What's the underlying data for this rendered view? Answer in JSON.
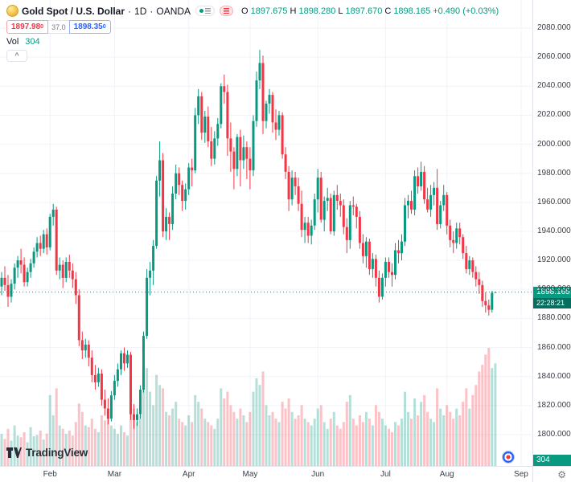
{
  "header": {
    "symbol_title": "Gold Spot / U.S. Dollar",
    "dot": "·",
    "timeframe": "1D",
    "exchange": "OANDA",
    "ohlc": {
      "o_label": "O",
      "o": "1897.675",
      "h_label": "H",
      "h": "1898.280",
      "l_label": "L",
      "l": "1897.670",
      "c_label": "C",
      "c": "1898.165",
      "change": "+0.490 (+0.03%)"
    },
    "trade": {
      "sell": "1897.98",
      "sell_sup": "0",
      "spread": "37.0",
      "buy": "1898.35",
      "buy_sup": "0"
    },
    "vol_label": "Vol",
    "vol_value": "304",
    "collapse_label": "^"
  },
  "price_axis": {
    "ticks": [
      2080,
      2060,
      2040,
      2020,
      2000,
      1980,
      1960,
      1940,
      1920,
      1900,
      1880,
      1860,
      1840,
      1820,
      1800
    ],
    "decimals": 3,
    "current_price_label": "1898.165",
    "countdown": "22:28:21",
    "volume_badge": "304"
  },
  "time_axis": {
    "months": [
      {
        "label": "Feb",
        "index": 15
      },
      {
        "label": "Mar",
        "index": 35
      },
      {
        "label": "Apr",
        "index": 58
      },
      {
        "label": "May",
        "index": 77
      },
      {
        "label": "Jun",
        "index": 98
      },
      {
        "label": "Jul",
        "index": 119
      },
      {
        "label": "Aug",
        "index": 138
      },
      {
        "label": "Sep",
        "index": 161
      }
    ]
  },
  "footer": {
    "logo_text": "TradingView",
    "gear_icon": "⚙"
  },
  "chart_data": {
    "type": "candlestick+volume",
    "title": "Gold Spot / U.S. Dollar, 1D, OANDA",
    "y_axis_range": [
      1800,
      2080
    ],
    "y_top_price": 2080,
    "y_bottom_price": 1800,
    "current_price": 1898.165,
    "total_slots": 165,
    "colors": {
      "up": "#089981",
      "down": "#f23645",
      "vol_up": "rgba(8,153,129,0.30)",
      "vol_down": "rgba(242,54,69,0.30)",
      "grid": "#f0f3fa",
      "current_line": "#089981",
      "price_label_bg": "#089981",
      "countdown_bg": "#056e5f"
    },
    "candles": [
      [
        1902,
        1912,
        1896,
        1908
      ],
      [
        1908,
        1916,
        1899,
        1903
      ],
      [
        1903,
        1910,
        1888,
        1895
      ],
      [
        1895,
        1907,
        1891,
        1904
      ],
      [
        1904,
        1918,
        1900,
        1915
      ],
      [
        1915,
        1923,
        1908,
        1920
      ],
      [
        1920,
        1928,
        1911,
        1917
      ],
      [
        1917,
        1922,
        1902,
        1905
      ],
      [
        1905,
        1915,
        1902,
        1912
      ],
      [
        1912,
        1921,
        1908,
        1918
      ],
      [
        1918,
        1929,
        1915,
        1926
      ],
      [
        1926,
        1936,
        1922,
        1932
      ],
      [
        1932,
        1937,
        1923,
        1928
      ],
      [
        1928,
        1941,
        1925,
        1938
      ],
      [
        1938,
        1942,
        1924,
        1929
      ],
      [
        1929,
        1952,
        1927,
        1950
      ],
      [
        1950,
        1959,
        1944,
        1955
      ],
      [
        1955,
        1957,
        1910,
        1913
      ],
      [
        1913,
        1922,
        1907,
        1917
      ],
      [
        1917,
        1920,
        1901,
        1908
      ],
      [
        1908,
        1922,
        1905,
        1919
      ],
      [
        1919,
        1924,
        1908,
        1913
      ],
      [
        1913,
        1918,
        1901,
        1907
      ],
      [
        1907,
        1912,
        1890,
        1896
      ],
      [
        1896,
        1900,
        1861,
        1865
      ],
      [
        1865,
        1871,
        1852,
        1858
      ],
      [
        1858,
        1866,
        1853,
        1862
      ],
      [
        1862,
        1865,
        1847,
        1853
      ],
      [
        1853,
        1858,
        1836,
        1841
      ],
      [
        1841,
        1848,
        1831,
        1836
      ],
      [
        1836,
        1846,
        1833,
        1842
      ],
      [
        1842,
        1845,
        1820,
        1824
      ],
      [
        1824,
        1831,
        1813,
        1818
      ],
      [
        1818,
        1825,
        1807,
        1811
      ],
      [
        1811,
        1830,
        1809,
        1827
      ],
      [
        1827,
        1841,
        1824,
        1837
      ],
      [
        1837,
        1849,
        1833,
        1845
      ],
      [
        1845,
        1858,
        1841,
        1856
      ],
      [
        1856,
        1860,
        1844,
        1849
      ],
      [
        1849,
        1858,
        1846,
        1855
      ],
      [
        1855,
        1857,
        1810,
        1814
      ],
      [
        1814,
        1821,
        1804,
        1810
      ],
      [
        1810,
        1818,
        1806,
        1814
      ],
      [
        1814,
        1834,
        1811,
        1831
      ],
      [
        1831,
        1871,
        1829,
        1868
      ],
      [
        1868,
        1914,
        1866,
        1908
      ],
      [
        1908,
        1919,
        1896,
        1913
      ],
      [
        1913,
        1934,
        1903,
        1930
      ],
      [
        1930,
        1978,
        1928,
        1975
      ],
      [
        1975,
        2002,
        1964,
        1989
      ],
      [
        1989,
        1994,
        1936,
        1940
      ],
      [
        1940,
        1956,
        1934,
        1950
      ],
      [
        1950,
        1953,
        1934,
        1945
      ],
      [
        1945,
        1971,
        1941,
        1966
      ],
      [
        1966,
        1986,
        1962,
        1980
      ],
      [
        1980,
        1984,
        1965,
        1972
      ],
      [
        1972,
        1975,
        1954,
        1961
      ],
      [
        1961,
        1973,
        1955,
        1969
      ],
      [
        1969,
        1987,
        1965,
        1984
      ],
      [
        1984,
        1990,
        1971,
        1982
      ],
      [
        1982,
        2025,
        1980,
        2020
      ],
      [
        2020,
        2038,
        2014,
        2033
      ],
      [
        2033,
        2036,
        2003,
        2008
      ],
      [
        2008,
        2023,
        2001,
        2019
      ],
      [
        2019,
        2026,
        1998,
        2002
      ],
      [
        2002,
        2012,
        1985,
        1990
      ],
      [
        1990,
        2009,
        1986,
        2004
      ],
      [
        2004,
        2018,
        1999,
        2014
      ],
      [
        2014,
        2042,
        2011,
        2040
      ],
      [
        2040,
        2048,
        2028,
        2036
      ],
      [
        2036,
        2041,
        1992,
        2004
      ],
      [
        2004,
        2015,
        1981,
        1995
      ],
      [
        1995,
        1998,
        1969,
        1983
      ],
      [
        1983,
        2007,
        1978,
        2005
      ],
      [
        2005,
        2010,
        1971,
        1989
      ],
      [
        1989,
        2006,
        1983,
        1998
      ],
      [
        1998,
        2002,
        1976,
        1990
      ],
      [
        1990,
        1998,
        1969,
        1982
      ],
      [
        1982,
        2020,
        1978,
        2016
      ],
      [
        2016,
        2050,
        2012,
        2044
      ],
      [
        2044,
        2065,
        2038,
        2056
      ],
      [
        2056,
        2061,
        2007,
        2016
      ],
      [
        2016,
        2030,
        2011,
        2028
      ],
      [
        2028,
        2038,
        2021,
        2034
      ],
      [
        2034,
        2036,
        2008,
        2015
      ],
      [
        2015,
        2024,
        2003,
        2010
      ],
      [
        2010,
        2023,
        2006,
        2020
      ],
      [
        2020,
        2022,
        1990,
        1993
      ],
      [
        1993,
        1998,
        1976,
        1981
      ],
      [
        1981,
        1985,
        1954,
        1962
      ],
      [
        1962,
        1982,
        1958,
        1977
      ],
      [
        1977,
        1981,
        1965,
        1971
      ],
      [
        1971,
        1977,
        1954,
        1959
      ],
      [
        1959,
        1968,
        1936,
        1941
      ],
      [
        1941,
        1950,
        1932,
        1946
      ],
      [
        1946,
        1950,
        1932,
        1937
      ],
      [
        1937,
        1948,
        1931,
        1944
      ],
      [
        1944,
        1966,
        1941,
        1962
      ],
      [
        1962,
        1983,
        1953,
        1977
      ],
      [
        1977,
        1981,
        1946,
        1948
      ],
      [
        1948,
        1964,
        1940,
        1961
      ],
      [
        1961,
        1970,
        1954,
        1963
      ],
      [
        1963,
        1966,
        1938,
        1940
      ],
      [
        1940,
        1968,
        1937,
        1965
      ],
      [
        1965,
        1972,
        1955,
        1961
      ],
      [
        1961,
        1966,
        1950,
        1958
      ],
      [
        1958,
        1962,
        1938,
        1943
      ],
      [
        1943,
        1949,
        1925,
        1934
      ],
      [
        1934,
        1961,
        1928,
        1958
      ],
      [
        1958,
        1964,
        1951,
        1957
      ],
      [
        1957,
        1959,
        1942,
        1950
      ],
      [
        1950,
        1954,
        1928,
        1932
      ],
      [
        1932,
        1938,
        1918,
        1923
      ],
      [
        1923,
        1936,
        1915,
        1933
      ],
      [
        1933,
        1935,
        1910,
        1914
      ],
      [
        1914,
        1925,
        1908,
        1921
      ],
      [
        1921,
        1924,
        1902,
        1908
      ],
      [
        1908,
        1913,
        1891,
        1895
      ],
      [
        1895,
        1911,
        1893,
        1908
      ],
      [
        1908,
        1922,
        1902,
        1919
      ],
      [
        1919,
        1922,
        1908,
        1912
      ],
      [
        1912,
        1918,
        1902,
        1910
      ],
      [
        1910,
        1932,
        1907,
        1927
      ],
      [
        1927,
        1934,
        1918,
        1925
      ],
      [
        1925,
        1938,
        1920,
        1933
      ],
      [
        1933,
        1963,
        1930,
        1958
      ],
      [
        1958,
        1965,
        1949,
        1961
      ],
      [
        1961,
        1968,
        1952,
        1955
      ],
      [
        1955,
        1982,
        1951,
        1978
      ],
      [
        1978,
        1984,
        1966,
        1971
      ],
      [
        1971,
        1988,
        1968,
        1981
      ],
      [
        1981,
        1985,
        1959,
        1962
      ],
      [
        1962,
        1970,
        1953,
        1955
      ],
      [
        1955,
        1972,
        1950,
        1965
      ],
      [
        1965,
        1974,
        1958,
        1970
      ],
      [
        1970,
        1983,
        1941,
        1945
      ],
      [
        1945,
        1961,
        1942,
        1958
      ],
      [
        1958,
        1972,
        1954,
        1965
      ],
      [
        1965,
        1967,
        1938,
        1944
      ],
      [
        1944,
        1948,
        1929,
        1934
      ],
      [
        1934,
        1940,
        1925,
        1932
      ],
      [
        1932,
        1946,
        1928,
        1942
      ],
      [
        1942,
        1946,
        1931,
        1936
      ],
      [
        1936,
        1938,
        1921,
        1925
      ],
      [
        1925,
        1930,
        1911,
        1914
      ],
      [
        1914,
        1923,
        1910,
        1920
      ],
      [
        1920,
        1922,
        1908,
        1912
      ],
      [
        1912,
        1916,
        1902,
        1907
      ],
      [
        1907,
        1912,
        1897,
        1903
      ],
      [
        1903,
        1906,
        1888,
        1892
      ],
      [
        1892,
        1898,
        1884,
        1889
      ],
      [
        1889,
        1893,
        1882,
        1886
      ],
      [
        1886,
        1899,
        1884,
        1897.675
      ],
      [
        1897.675,
        1898.28,
        1897.67,
        1898.165
      ]
    ],
    "volumes": [
      95,
      80,
      110,
      75,
      120,
      90,
      85,
      100,
      70,
      115,
      88,
      92,
      105,
      78,
      96,
      210,
      150,
      230,
      120,
      110,
      95,
      105,
      90,
      130,
      185,
      160,
      120,
      115,
      140,
      110,
      100,
      150,
      135,
      160,
      120,
      110,
      95,
      120,
      100,
      90,
      200,
      170,
      130,
      150,
      260,
      290,
      220,
      180,
      270,
      240,
      230,
      160,
      150,
      170,
      190,
      140,
      130,
      120,
      150,
      130,
      210,
      190,
      170,
      140,
      130,
      120,
      110,
      140,
      230,
      200,
      220,
      180,
      160,
      140,
      170,
      150,
      130,
      160,
      220,
      260,
      240,
      280,
      180,
      150,
      160,
      140,
      130,
      190,
      170,
      200,
      160,
      140,
      150,
      180,
      140,
      130,
      120,
      140,
      170,
      180,
      130,
      110,
      140,
      160,
      120,
      110,
      130,
      190,
      210,
      140,
      120,
      150,
      130,
      160,
      140,
      120,
      180,
      160,
      140,
      120,
      110,
      100,
      130,
      120,
      140,
      220,
      160,
      140,
      200,
      150,
      190,
      210,
      160,
      140,
      130,
      230,
      170,
      150,
      180,
      160,
      140,
      170,
      150,
      190,
      230,
      170,
      210,
      240,
      280,
      300,
      330,
      350,
      290,
      304
    ]
  }
}
